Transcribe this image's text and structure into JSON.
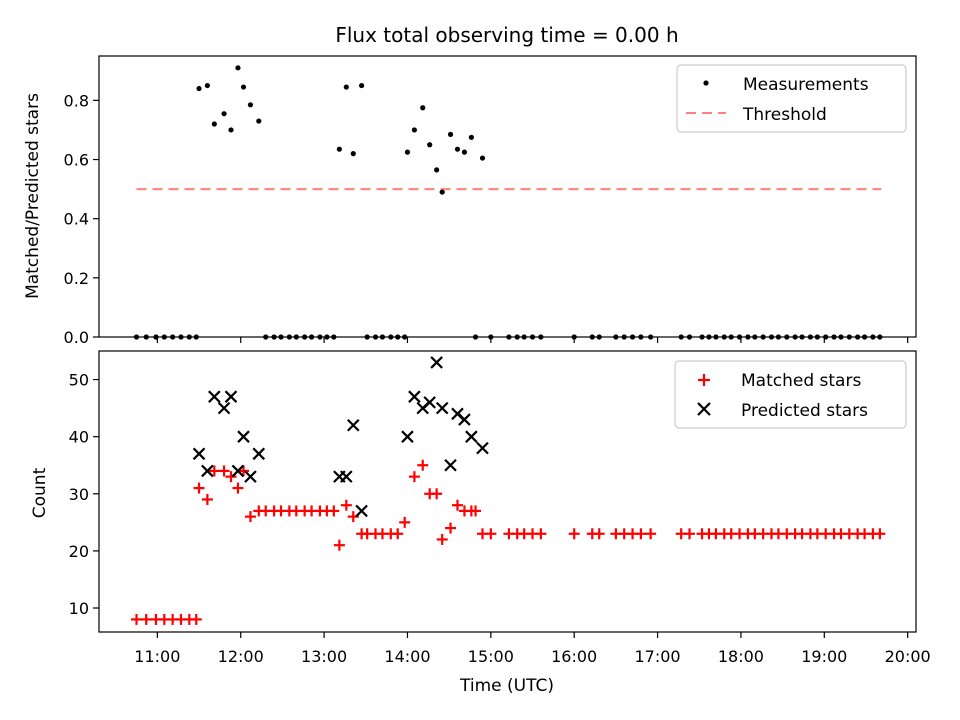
{
  "title": "Flux total observing time = 0.00 h",
  "chart_data": [
    {
      "type": "scatter",
      "ylabel": "Matched/Predicted stars",
      "xlim": [
        "10:18",
        "20:06"
      ],
      "ylim": [
        0,
        0.95
      ],
      "yticks": [
        "0.0",
        "0.2",
        "0.4",
        "0.6",
        "0.8"
      ],
      "legend_position": "top-right",
      "legend": [
        {
          "label": "Measurements",
          "marker": "dot",
          "color": "#000000"
        },
        {
          "label": "Threshold",
          "marker": "dashed-line",
          "color": "#ff7f7f"
        }
      ],
      "series": [
        {
          "name": "Measurements",
          "color": "#000000",
          "points": [
            [
              "10:45",
              0
            ],
            [
              "10:52",
              0
            ],
            [
              "10:59",
              0
            ],
            [
              "11:05",
              0
            ],
            [
              "11:11",
              0
            ],
            [
              "11:17",
              0
            ],
            [
              "11:23",
              0
            ],
            [
              "11:28",
              0
            ],
            [
              "11:30",
              0.84
            ],
            [
              "11:36",
              0.85
            ],
            [
              "11:41",
              0.72
            ],
            [
              "11:48",
              0.755
            ],
            [
              "11:53",
              0.7
            ],
            [
              "11:58",
              0.91
            ],
            [
              "12:02",
              0.845
            ],
            [
              "12:07",
              0.785
            ],
            [
              "12:13",
              0.73
            ],
            [
              "12:18",
              0
            ],
            [
              "12:24",
              0
            ],
            [
              "12:29",
              0
            ],
            [
              "12:35",
              0
            ],
            [
              "12:40",
              0
            ],
            [
              "12:46",
              0
            ],
            [
              "12:51",
              0
            ],
            [
              "12:57",
              0
            ],
            [
              "13:02",
              0
            ],
            [
              "13:07",
              0
            ],
            [
              "13:11",
              0.635
            ],
            [
              "13:16",
              0.845
            ],
            [
              "13:21",
              0.62
            ],
            [
              "13:27",
              0.85
            ],
            [
              "13:31",
              0
            ],
            [
              "13:37",
              0
            ],
            [
              "13:42",
              0
            ],
            [
              "13:48",
              0
            ],
            [
              "13:53",
              0
            ],
            [
              "13:58",
              0
            ],
            [
              "14:00",
              0.625
            ],
            [
              "14:05",
              0.7
            ],
            [
              "14:11",
              0.775
            ],
            [
              "14:16",
              0.65
            ],
            [
              "14:21",
              0.565
            ],
            [
              "14:25",
              0.49
            ],
            [
              "14:31",
              0.685
            ],
            [
              "14:36",
              0.635
            ],
            [
              "14:41",
              0.625
            ],
            [
              "14:46",
              0.675
            ],
            [
              "14:54",
              0.605
            ],
            [
              "14:49",
              0
            ],
            [
              "15:00",
              0
            ],
            [
              "15:13",
              0
            ],
            [
              "15:19",
              0
            ],
            [
              "15:24",
              0
            ],
            [
              "15:30",
              0
            ],
            [
              "15:36",
              0
            ],
            [
              "16:00",
              0
            ],
            [
              "16:13",
              0
            ],
            [
              "16:18",
              0
            ],
            [
              "16:30",
              0
            ],
            [
              "16:36",
              0
            ],
            [
              "16:42",
              0
            ],
            [
              "16:48",
              0
            ],
            [
              "16:55",
              0
            ],
            [
              "17:17",
              0
            ],
            [
              "17:23",
              0
            ],
            [
              "17:32",
              0
            ],
            [
              "17:37",
              0
            ],
            [
              "17:42",
              0
            ],
            [
              "17:48",
              0
            ],
            [
              "17:53",
              0
            ],
            [
              "17:59",
              0
            ],
            [
              "18:05",
              0
            ],
            [
              "18:10",
              0
            ],
            [
              "18:16",
              0
            ],
            [
              "18:22",
              0
            ],
            [
              "18:27",
              0
            ],
            [
              "18:33",
              0
            ],
            [
              "18:39",
              0
            ],
            [
              "18:44",
              0
            ],
            [
              "18:50",
              0
            ],
            [
              "18:55",
              0
            ],
            [
              "19:01",
              0
            ],
            [
              "19:07",
              0
            ],
            [
              "19:12",
              0
            ],
            [
              "19:18",
              0
            ],
            [
              "19:24",
              0
            ],
            [
              "19:29",
              0
            ],
            [
              "19:35",
              0
            ],
            [
              "19:40",
              0
            ]
          ]
        },
        {
          "name": "Threshold",
          "color": "#ff7f7f",
          "line": [
            [
              "10:45",
              0.5
            ],
            [
              "19:41",
              0.5
            ]
          ]
        }
      ]
    },
    {
      "type": "scatter",
      "xlabel": "Time (UTC)",
      "ylabel": "Count",
      "xlim": [
        "10:18",
        "20:06"
      ],
      "ylim": [
        5.8,
        55
      ],
      "yticks": [
        "10",
        "20",
        "30",
        "40",
        "50"
      ],
      "xticks": [
        "11:00",
        "12:00",
        "13:00",
        "14:00",
        "15:00",
        "16:00",
        "17:00",
        "18:00",
        "19:00",
        "20:00"
      ],
      "legend_position": "top-right",
      "legend": [
        {
          "label": "Matched stars",
          "marker": "plus",
          "color": "#ff0000"
        },
        {
          "label": "Predicted stars",
          "marker": "x",
          "color": "#000000"
        }
      ],
      "series": [
        {
          "name": "Matched stars",
          "color": "#ff0000",
          "marker": "plus",
          "points": [
            [
              "10:45",
              8
            ],
            [
              "10:52",
              8
            ],
            [
              "10:59",
              8
            ],
            [
              "11:05",
              8
            ],
            [
              "11:11",
              8
            ],
            [
              "11:17",
              8
            ],
            [
              "11:23",
              8
            ],
            [
              "11:28",
              8
            ],
            [
              "11:30",
              31
            ],
            [
              "11:36",
              29
            ],
            [
              "11:41",
              34
            ],
            [
              "11:48",
              34
            ],
            [
              "11:53",
              33
            ],
            [
              "11:58",
              31
            ],
            [
              "12:02",
              34
            ],
            [
              "12:07",
              26
            ],
            [
              "12:13",
              27
            ],
            [
              "12:18",
              27
            ],
            [
              "12:24",
              27
            ],
            [
              "12:29",
              27
            ],
            [
              "12:35",
              27
            ],
            [
              "12:40",
              27
            ],
            [
              "12:46",
              27
            ],
            [
              "12:51",
              27
            ],
            [
              "12:57",
              27
            ],
            [
              "13:02",
              27
            ],
            [
              "13:07",
              27
            ],
            [
              "13:11",
              21
            ],
            [
              "13:16",
              28
            ],
            [
              "13:21",
              26
            ],
            [
              "13:27",
              23
            ],
            [
              "13:31",
              23
            ],
            [
              "13:37",
              23
            ],
            [
              "13:42",
              23
            ],
            [
              "13:48",
              23
            ],
            [
              "13:53",
              23
            ],
            [
              "13:58",
              25
            ],
            [
              "14:05",
              33
            ],
            [
              "14:11",
              35
            ],
            [
              "14:16",
              30
            ],
            [
              "14:21",
              30
            ],
            [
              "14:25",
              22
            ],
            [
              "14:31",
              24
            ],
            [
              "14:36",
              28
            ],
            [
              "14:41",
              27
            ],
            [
              "14:46",
              27
            ],
            [
              "14:49",
              27
            ],
            [
              "14:54",
              23
            ],
            [
              "15:00",
              23
            ],
            [
              "15:13",
              23
            ],
            [
              "15:19",
              23
            ],
            [
              "15:24",
              23
            ],
            [
              "15:30",
              23
            ],
            [
              "15:36",
              23
            ],
            [
              "16:00",
              23
            ],
            [
              "16:13",
              23
            ],
            [
              "16:18",
              23
            ],
            [
              "16:30",
              23
            ],
            [
              "16:36",
              23
            ],
            [
              "16:42",
              23
            ],
            [
              "16:48",
              23
            ],
            [
              "16:55",
              23
            ],
            [
              "17:17",
              23
            ],
            [
              "17:23",
              23
            ],
            [
              "17:32",
              23
            ],
            [
              "17:37",
              23
            ],
            [
              "17:42",
              23
            ],
            [
              "17:48",
              23
            ],
            [
              "17:53",
              23
            ],
            [
              "17:59",
              23
            ],
            [
              "18:05",
              23
            ],
            [
              "18:10",
              23
            ],
            [
              "18:16",
              23
            ],
            [
              "18:22",
              23
            ],
            [
              "18:27",
              23
            ],
            [
              "18:33",
              23
            ],
            [
              "18:39",
              23
            ],
            [
              "18:44",
              23
            ],
            [
              "18:50",
              23
            ],
            [
              "18:55",
              23
            ],
            [
              "19:01",
              23
            ],
            [
              "19:07",
              23
            ],
            [
              "19:12",
              23
            ],
            [
              "19:18",
              23
            ],
            [
              "19:24",
              23
            ],
            [
              "19:29",
              23
            ],
            [
              "19:35",
              23
            ],
            [
              "19:40",
              23
            ]
          ]
        },
        {
          "name": "Predicted stars",
          "color": "#000000",
          "marker": "x",
          "points": [
            [
              "11:30",
              37
            ],
            [
              "11:36",
              34
            ],
            [
              "11:41",
              47
            ],
            [
              "11:48",
              45
            ],
            [
              "11:53",
              47
            ],
            [
              "11:58",
              34
            ],
            [
              "12:02",
              40
            ],
            [
              "12:07",
              33
            ],
            [
              "12:13",
              37
            ],
            [
              "13:11",
              33
            ],
            [
              "13:16",
              33
            ],
            [
              "13:21",
              42
            ],
            [
              "13:27",
              27
            ],
            [
              "14:00",
              40
            ],
            [
              "14:05",
              47
            ],
            [
              "14:11",
              45
            ],
            [
              "14:16",
              46
            ],
            [
              "14:21",
              53
            ],
            [
              "14:25",
              45
            ],
            [
              "14:31",
              35
            ],
            [
              "14:36",
              44
            ],
            [
              "14:41",
              43
            ],
            [
              "14:46",
              40
            ],
            [
              "14:54",
              38
            ]
          ]
        }
      ]
    }
  ]
}
